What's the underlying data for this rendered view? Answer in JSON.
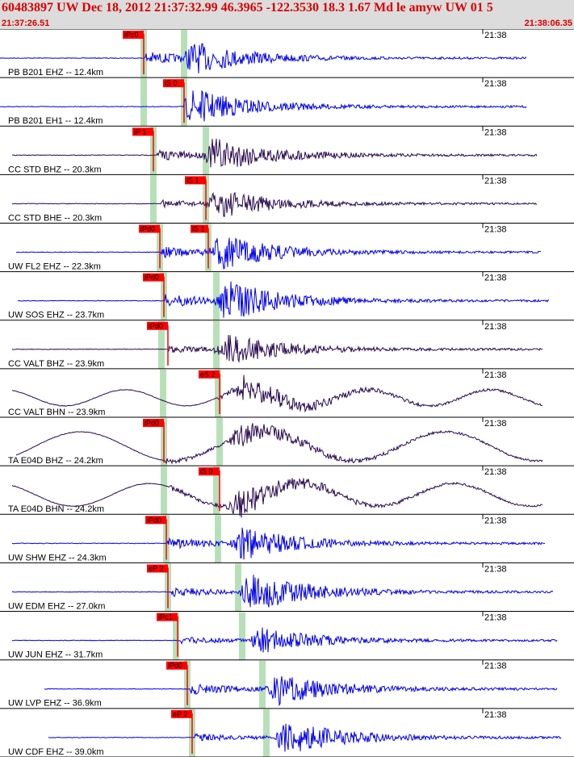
{
  "header": {
    "title": "60483897 UW Dec 18, 2012 21:37:32.99    46.3965 -122.3530 18.3 1.67 Md le amyw UW 01    5",
    "start_time": "21:37:26.51",
    "end_time": "21:38:06.35"
  },
  "minute_label": "21:38",
  "colors": {
    "header_bg": "#dcdcdc",
    "header_text": "#d80000",
    "trace_blue": "#0000ee",
    "trace_dark": "#2a0a50",
    "pick_red": "#ff0000",
    "band_green": "#b8e0b8",
    "grid": "#000000"
  },
  "traces": [
    {
      "label": "PB B201 EHZ -- 12.4km",
      "pick": "iPc0",
      "color": "blue"
    },
    {
      "label": "PB B201 EH1 -- 12.4km",
      "pick": "iS 0",
      "color": "blue"
    },
    {
      "label": "CC STD BHZ -- 20.3km",
      "pick": "iP 1",
      "color": "dark"
    },
    {
      "label": "CC STD BHE -- 20.3km",
      "pick": "iS 1",
      "color": "dark"
    },
    {
      "label": "UW FL2 EHZ -- 22.3km",
      "pick": "iPd0",
      "pick2": "iS 1",
      "color": "blue"
    },
    {
      "label": "UW SOS EHZ -- 23.7km",
      "pick": "iPd0",
      "color": "blue"
    },
    {
      "label": "CC VALT BHZ -- 23.9km",
      "pick": "iPd0",
      "color": "dark"
    },
    {
      "label": "CC VALT BHN -- 23.9km",
      "pick": "eS 2",
      "color": "dark"
    },
    {
      "label": "TA E04D BHZ -- 24.2km",
      "pick": "iPd0",
      "color": "dark"
    },
    {
      "label": "TA E04D BHN -- 24.2km",
      "pick": "iS 0",
      "color": "dark"
    },
    {
      "label": "UW SHW EHZ -- 24.3km",
      "pick": "iPd0",
      "color": "blue"
    },
    {
      "label": "UW EDM EHZ -- 27.0km",
      "pick": "eP 2",
      "color": "blue"
    },
    {
      "label": "UW JUN EHZ -- 31.7km",
      "pick": "iPc1",
      "color": "blue"
    },
    {
      "label": "UW LVP EHZ -- 36.9km",
      "pick": "iPd0",
      "color": "blue"
    },
    {
      "label": "UW CDF EHZ -- 39.0km",
      "pick": "eP 2",
      "color": "blue"
    }
  ]
}
